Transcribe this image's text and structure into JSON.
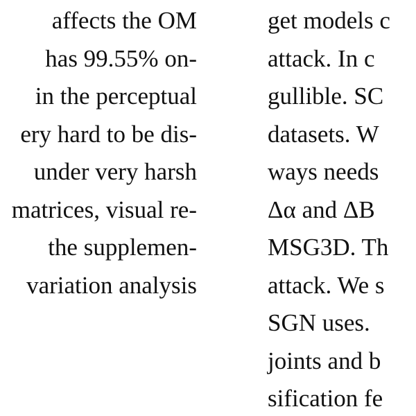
{
  "left_column": {
    "lines": [
      "affects the OM",
      "has 99.55% on-",
      "in the perceptual",
      "ery hard to be dis-",
      "under very harsh",
      "matrices, visual re-",
      "the supplemen-",
      "variation analysis"
    ]
  },
  "right_column": {
    "lines": [
      "get models c",
      "attack.  In c",
      "gullible.  SC",
      "datasets.  W",
      "ways needs",
      "Δα and ΔB",
      "MSG3D. Th",
      "attack. We s",
      "SGN uses.",
      "joints and b",
      "sification fe"
    ]
  }
}
